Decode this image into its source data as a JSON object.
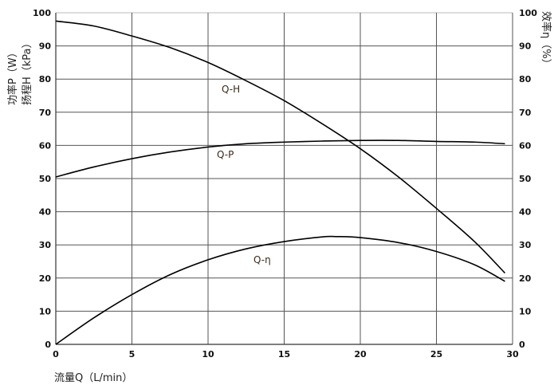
{
  "chart_data": {
    "type": "line",
    "xlabel": "流量Q（L/min）",
    "ylabel_left": [
      "功率P（W）",
      "扬程H（kPa）"
    ],
    "ylabel_right": "效率η（%）",
    "xlim": [
      0,
      30
    ],
    "ylim": [
      0,
      100
    ],
    "y2lim": [
      0,
      100
    ],
    "xticks": [
      0,
      5,
      10,
      15,
      20,
      25,
      30
    ],
    "yticks": [
      0,
      10,
      20,
      30,
      40,
      50,
      60,
      70,
      80,
      90,
      100
    ],
    "grid": true,
    "series": [
      {
        "name": "Q-H",
        "x": [
          0,
          2.5,
          5,
          7.5,
          10,
          12.5,
          15,
          17.5,
          20,
          22.5,
          25,
          27.5,
          29.5
        ],
        "y": [
          97.5,
          96,
          93,
          89.5,
          85,
          79.5,
          73.5,
          66.5,
          59,
          50.5,
          41,
          31,
          21.5
        ]
      },
      {
        "name": "Q-P",
        "x": [
          0,
          2.5,
          5,
          7.5,
          10,
          12.5,
          15,
          17.5,
          20,
          22.5,
          25,
          27.5,
          29.5
        ],
        "y": [
          50.5,
          53.5,
          56,
          58,
          59.5,
          60.5,
          61,
          61.3,
          61.5,
          61.5,
          61.2,
          61,
          60.5
        ]
      },
      {
        "name": "Q-η",
        "x": [
          0,
          2.5,
          5,
          7.5,
          10,
          12.5,
          15,
          17.5,
          18.5,
          20,
          22.5,
          25,
          27.5,
          29.5
        ],
        "y": [
          0,
          8,
          15,
          21,
          25.5,
          28.8,
          31,
          32.4,
          32.5,
          32.2,
          30.7,
          28,
          24,
          19
        ]
      }
    ]
  }
}
